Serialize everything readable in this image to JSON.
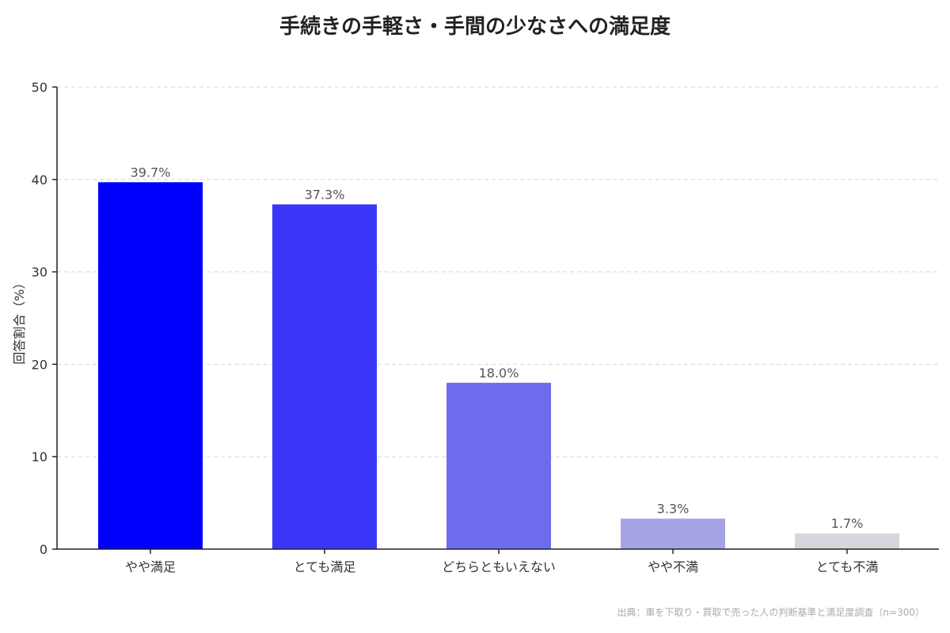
{
  "chart_data": {
    "type": "bar",
    "title": "手続きの手軽さ・手間の少なさへの満足度",
    "xlabel": "",
    "ylabel": "回答割合（%）",
    "ylim": [
      0,
      50
    ],
    "yticks": [
      0,
      10,
      20,
      30,
      40,
      50
    ],
    "grid": true,
    "categories": [
      "やや満足",
      "とても満足",
      "どちらともいえない",
      "やや不満",
      "とても不満"
    ],
    "values": [
      39.7,
      37.3,
      18.0,
      3.3,
      1.7
    ],
    "value_labels": [
      "39.7%",
      "37.3%",
      "18.0%",
      "3.3%",
      "1.7%"
    ],
    "colors": [
      "#0000ff",
      "#3a36f7",
      "#6e6cee",
      "#a6a3e3",
      "#d8d5dd"
    ],
    "source": "出典：車を下取り・買取で売った人の判断基準と満足度調査（n=300）"
  }
}
